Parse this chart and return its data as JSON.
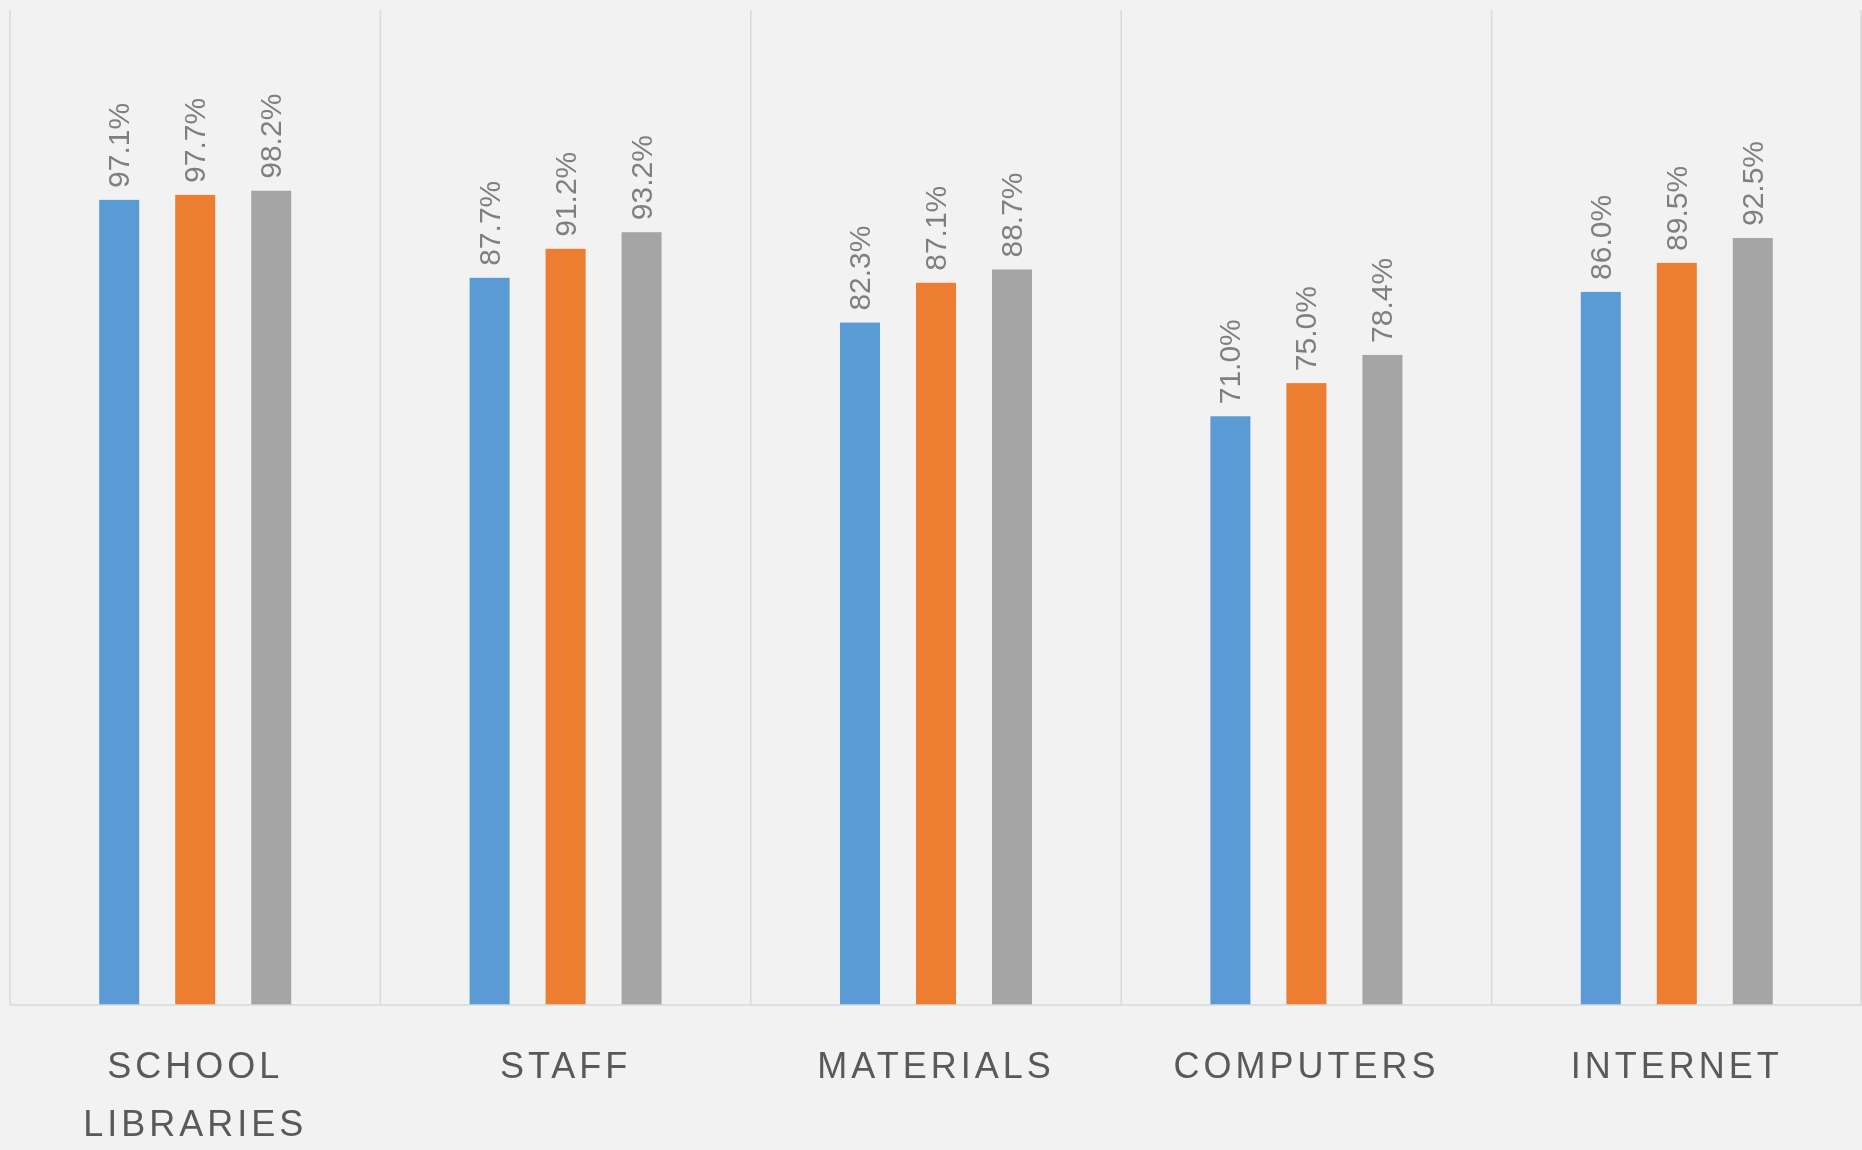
{
  "chart_data": {
    "type": "bar",
    "categories": [
      "SCHOOL LIBRARIES",
      "STAFF",
      "MATERIALS",
      "COMPUTERS",
      "INTERNET"
    ],
    "series": [
      {
        "color": "#5b9bd5",
        "values": [
          97.1,
          87.7,
          82.3,
          71.0,
          86.0
        ],
        "value_labels": [
          "97.1%",
          "87.7%",
          "82.3%",
          "71.0%",
          "86.0%"
        ]
      },
      {
        "color": "#ed7d31",
        "values": [
          97.7,
          91.2,
          87.1,
          75.0,
          89.5
        ],
        "value_labels": [
          "97.7%",
          "91.2%",
          "87.1%",
          "75.0%",
          "89.5%"
        ]
      },
      {
        "color": "#a5a5a5",
        "values": [
          98.2,
          93.2,
          88.7,
          78.4,
          92.5
        ],
        "value_labels": [
          "98.2%",
          "93.2%",
          "88.7%",
          "78.4%",
          "92.5%"
        ]
      }
    ],
    "ylim": [
      0,
      120
    ],
    "grid": "x",
    "tick_labels": "x"
  }
}
